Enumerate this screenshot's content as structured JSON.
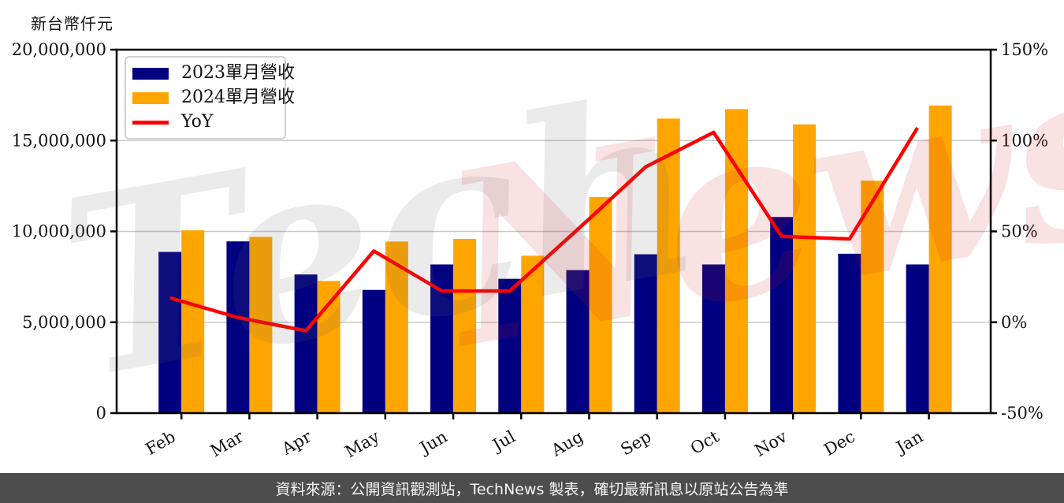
{
  "page": {
    "background": "#ffffff"
  },
  "axis_unit_label": "新台幣仟元",
  "legend": {
    "items": [
      {
        "label": "2023單月營收",
        "color": "#000080",
        "marker": "bar"
      },
      {
        "label": "2024單月營收",
        "color": "#FFA500",
        "marker": "bar"
      },
      {
        "label": "YoY",
        "color": "#FF0000",
        "marker": "line"
      }
    ]
  },
  "watermark": {
    "part_gray": "Tech",
    "part_pink": "News",
    "gray_color": "#666666",
    "pink_color": "#cc2222",
    "opacity": 0.13
  },
  "footer": {
    "text": "資料來源：公開資訊觀測站，TechNews 製表，確切最新訊息以原站公告為準",
    "background": "#4d4d4d",
    "text_color": "#f5f5f5"
  },
  "chart_data": {
    "type": "bar",
    "title": "",
    "categories": [
      "Feb",
      "Mar",
      "Apr",
      "May",
      "Jun",
      "Jul",
      "Aug",
      "Sep",
      "Oct",
      "Nov",
      "Dec",
      "Jan"
    ],
    "series": [
      {
        "name": "2023單月營收",
        "type": "bar",
        "axis": "left",
        "color": "#000080",
        "values": [
          8870000,
          9450000,
          7630000,
          6780000,
          8180000,
          7390000,
          7870000,
          8740000,
          8180000,
          10790000,
          8770000,
          8180000
        ]
      },
      {
        "name": "2024單月營收",
        "type": "bar",
        "axis": "left",
        "color": "#FFA500",
        "values": [
          10060000,
          9700000,
          7270000,
          9440000,
          9590000,
          8660000,
          11890000,
          16210000,
          16730000,
          15890000,
          12790000,
          16930000
        ]
      },
      {
        "name": "YoY",
        "type": "line",
        "axis": "right",
        "color": "#FF0000",
        "values_percent": [
          13.4,
          2.6,
          -4.7,
          39.2,
          17.2,
          17.2,
          51.1,
          85.5,
          104.5,
          47.3,
          45.8,
          107.0
        ]
      }
    ],
    "y_left": {
      "title": "新台幣仟元",
      "min": 0,
      "max": 20000000,
      "tick_labels_top_to_bottom": [
        "20,000,000",
        "15,000,000",
        "10,000,000",
        "5,000,000",
        "0"
      ]
    },
    "y_right": {
      "min": -50,
      "max": 150,
      "tick_labels_top_to_bottom": [
        "150%",
        "100%",
        "50%",
        "0%",
        "-50%"
      ]
    },
    "grid": {
      "horizontal": true,
      "color": "#c8c8c8"
    },
    "legend_position": "upper-left",
    "x_tick_rotation_deg": 30
  }
}
